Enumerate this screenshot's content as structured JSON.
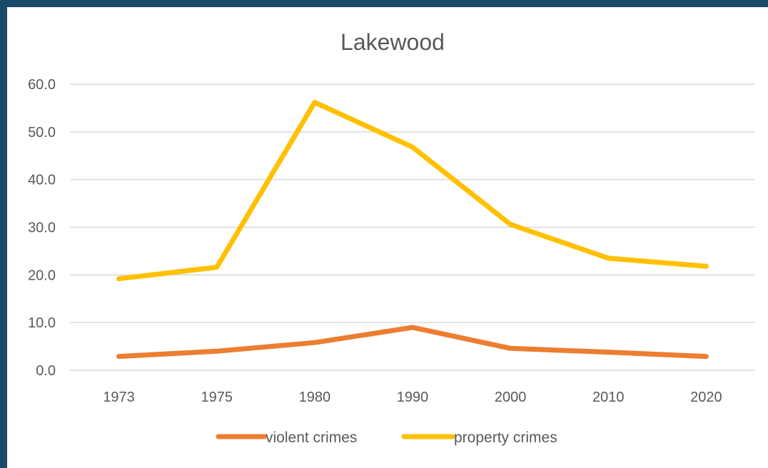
{
  "chart_data": {
    "type": "line",
    "title": "Lakewood",
    "categories": [
      "1973",
      "1975",
      "1980",
      "1990",
      "2000",
      "2010",
      "2020"
    ],
    "ylim": [
      0,
      60
    ],
    "yticks": [
      "0.0",
      "10.0",
      "20.0",
      "30.0",
      "40.0",
      "50.0",
      "60.0"
    ],
    "grid": true,
    "legend_position": "bottom",
    "series": [
      {
        "name": "violent crimes",
        "color": "#ed7d31",
        "values": [
          2.9,
          4.0,
          5.8,
          9.0,
          4.6,
          3.8,
          2.9
        ]
      },
      {
        "name": "property crimes",
        "color": "#ffc000",
        "values": [
          19.2,
          21.6,
          56.2,
          46.8,
          30.6,
          23.5,
          21.8
        ]
      }
    ]
  }
}
